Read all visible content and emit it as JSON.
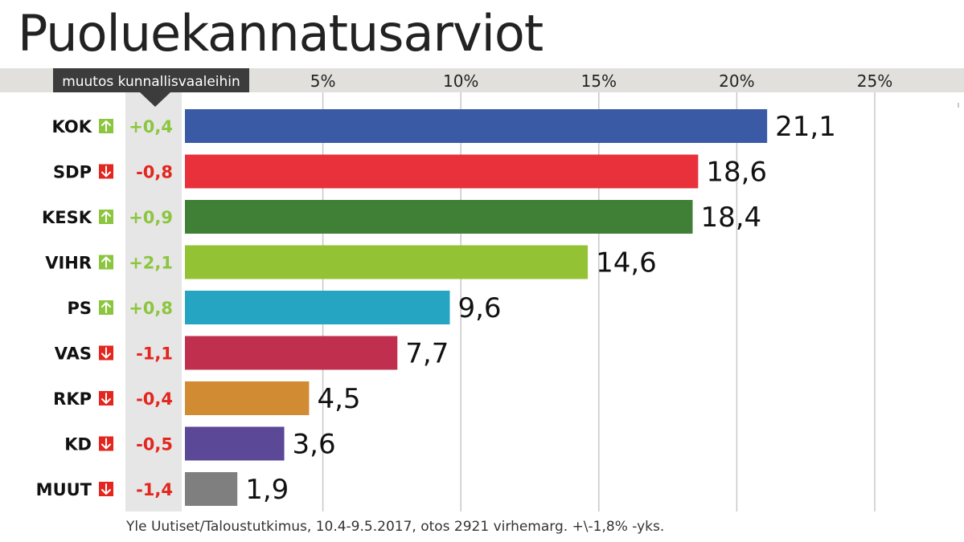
{
  "title": "Puoluekannatusarviot",
  "change_header": "muutos kunnallisvaaleihin",
  "source": "Yle Uutiset/Taloustutkimus, 10.4-9.5.2017, otos 2921 virhemarg. +\\-1,8% -yks.",
  "colors": {
    "up": "#8cc63f",
    "down": "#e3261e",
    "header_band": "#e1e0dc",
    "change_column": "#e6e6e6",
    "grid": "#c8c8c8"
  },
  "chart_data": {
    "type": "bar",
    "orientation": "horizontal",
    "title": "Puoluekannatusarviot",
    "xlim": [
      0,
      25
    ],
    "x_ticks": [
      5,
      10,
      15,
      20,
      25
    ],
    "x_tick_labels": [
      "5%",
      "10%",
      "15%",
      "20%",
      "25%"
    ],
    "grid": true,
    "categories": [
      "KOK",
      "SDP",
      "KESK",
      "VIHR",
      "PS",
      "VAS",
      "RKP",
      "KD",
      "MUUT"
    ],
    "values": [
      21.1,
      18.6,
      18.4,
      14.6,
      9.6,
      7.7,
      4.5,
      3.6,
      1.9
    ],
    "value_labels": [
      "21,1",
      "18,6",
      "18,4",
      "14,6",
      "9,6",
      "7,7",
      "4,5",
      "3,6",
      "1,9"
    ],
    "changes": [
      0.4,
      -0.8,
      0.9,
      2.1,
      0.8,
      -1.1,
      -0.4,
      -0.5,
      -1.4
    ],
    "change_labels": [
      "+0,4",
      "-0,8",
      "+0,9",
      "+2,1",
      "+0,8",
      "-1,1",
      "-0,4",
      "-0,5",
      "-1,4"
    ],
    "bar_colors": [
      "#3a5aa6",
      "#e8313a",
      "#3f7f36",
      "#93c234",
      "#26a5c3",
      "#c0304e",
      "#d18b33",
      "#5b4897",
      "#7f7f7f"
    ]
  }
}
